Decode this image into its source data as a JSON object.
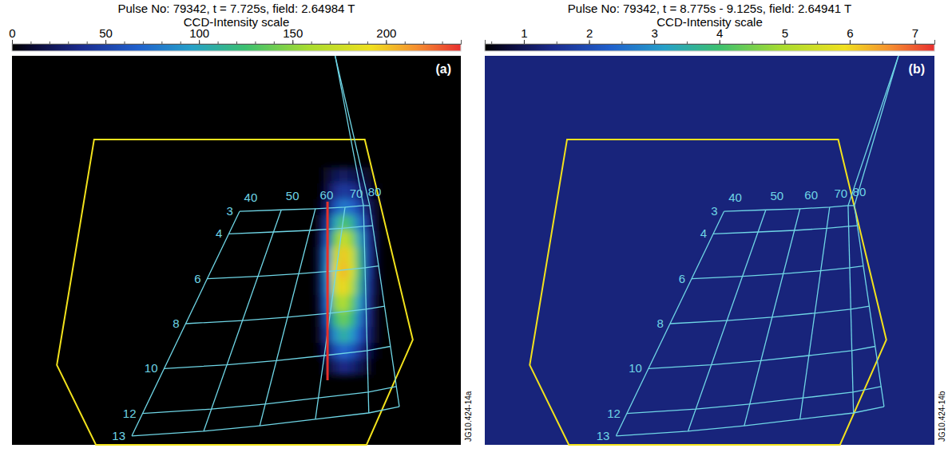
{
  "chart_data": [
    {
      "type": "heatmap",
      "title": "Pulse No: 79342, t = 7.725s, field: 2.64984 T",
      "subtitle": "CCD-Intensity scale",
      "panel_label": "(a)",
      "side_label": "JG10.424-14a",
      "xlim": [
        0,
        562
      ],
      "ylim": [
        0,
        488
      ],
      "tick_labels": false,
      "colorbar": {
        "range": [
          0,
          240
        ],
        "ticks": [
          0,
          50,
          100,
          150,
          200
        ],
        "minor_ticks": [
          0,
          10,
          20,
          30,
          40,
          50,
          60,
          70,
          80,
          90,
          100,
          110,
          120,
          130,
          140,
          150,
          160,
          170,
          180,
          190,
          200,
          210,
          220,
          230,
          240
        ]
      },
      "background": 0,
      "cells": {
        "x": [
          385,
          395,
          405,
          415,
          425,
          435,
          445,
          455
        ],
        "y": [
          150,
          170,
          190,
          210,
          230,
          250,
          270,
          290,
          310,
          330,
          350,
          370,
          390
        ],
        "z": [
          [
            0,
            10,
            20,
            25,
            20,
            15,
            10,
            0
          ],
          [
            0,
            15,
            35,
            45,
            40,
            30,
            15,
            5
          ],
          [
            5,
            25,
            60,
            80,
            70,
            50,
            25,
            10
          ],
          [
            10,
            40,
            100,
            130,
            110,
            75,
            35,
            10
          ],
          [
            15,
            60,
            140,
            175,
            150,
            100,
            45,
            15
          ],
          [
            20,
            80,
            170,
            200,
            175,
            115,
            50,
            15
          ],
          [
            20,
            85,
            185,
            205,
            180,
            120,
            50,
            15
          ],
          [
            20,
            80,
            175,
            195,
            165,
            110,
            45,
            15
          ],
          [
            15,
            70,
            150,
            165,
            140,
            95,
            40,
            10
          ],
          [
            10,
            55,
            120,
            140,
            120,
            80,
            35,
            10
          ],
          [
            10,
            40,
            90,
            110,
            95,
            65,
            30,
            10
          ],
          [
            5,
            25,
            55,
            70,
            60,
            40,
            20,
            5
          ],
          [
            0,
            10,
            25,
            35,
            30,
            20,
            10,
            0
          ]
        ]
      },
      "overlay_columns": [
        40,
        50,
        60,
        70,
        80
      ],
      "overlay_rows": [
        3,
        4,
        6,
        8,
        10,
        12,
        13
      ]
    },
    {
      "type": "heatmap",
      "title": "Pulse No: 79342, t = 8.775s - 9.125s, field: 2.64941 T",
      "subtitle": "CCD-Intensity scale",
      "panel_label": "(b)",
      "side_label": "JG10.424-14b",
      "xlim": [
        0,
        562
      ],
      "ylim": [
        0,
        488
      ],
      "tick_labels": false,
      "colorbar": {
        "range": [
          0.4,
          7.3
        ],
        "ticks": [
          1,
          2,
          3,
          4,
          5,
          6,
          7
        ],
        "minor_ticks": [
          0.5,
          1,
          1.5,
          2,
          2.5,
          3,
          3.5,
          4,
          4.5,
          5,
          5.5,
          6,
          6.5,
          7
        ]
      },
      "background": 1.3,
      "overlay_columns": [
        40,
        50,
        60,
        70,
        80
      ],
      "overlay_rows": [
        3,
        4,
        6,
        8,
        10,
        12,
        13
      ]
    }
  ]
}
